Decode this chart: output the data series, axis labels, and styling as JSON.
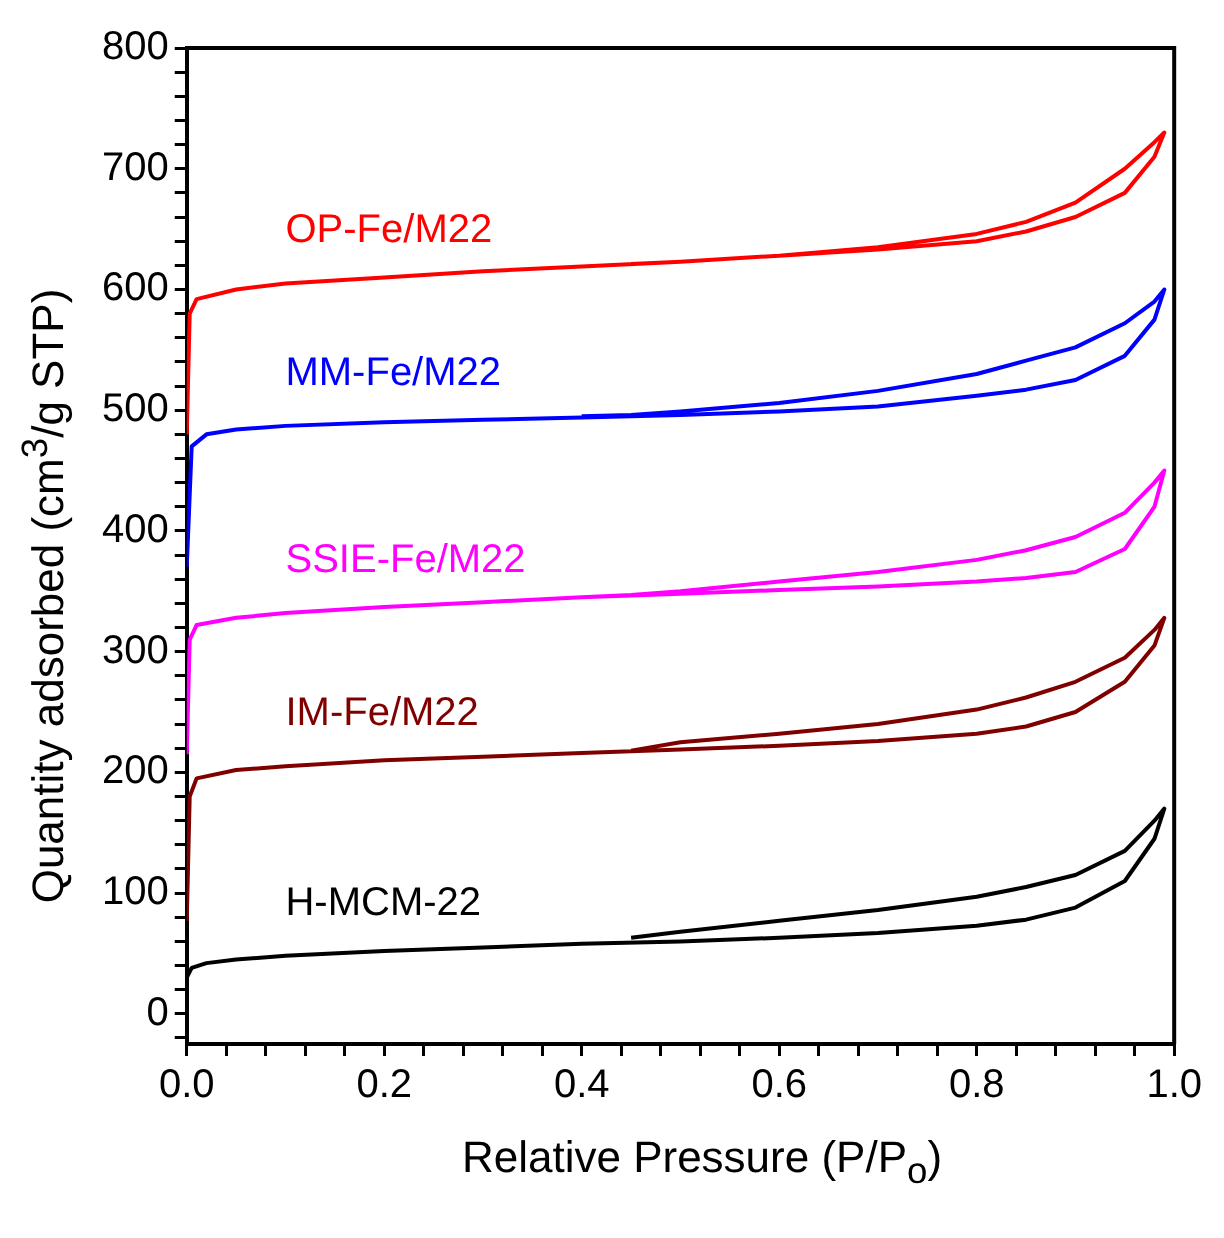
{
  "chart_data": {
    "type": "line",
    "xlabel": "Relative Pressure (P/P$_{o}$)",
    "ylabel": "Quantity adsorbed (cm$^{3}$/g STP)",
    "xlim": [
      0,
      1
    ],
    "ylim": [
      -25,
      800
    ],
    "xticks": [
      {
        "value": 0,
        "label": "0.0"
      },
      {
        "value": 0.04,
        "label": null
      },
      {
        "value": 0.08,
        "label": null
      },
      {
        "value": 0.12,
        "label": null
      },
      {
        "value": 0.16,
        "label": null
      },
      {
        "value": 0.2,
        "label": "0.2"
      },
      {
        "value": 0.24,
        "label": null
      },
      {
        "value": 0.28,
        "label": null
      },
      {
        "value": 0.32,
        "label": null
      },
      {
        "value": 0.36,
        "label": null
      },
      {
        "value": 0.4,
        "label": "0.4"
      },
      {
        "value": 0.44,
        "label": null
      },
      {
        "value": 0.48,
        "label": null
      },
      {
        "value": 0.52,
        "label": null
      },
      {
        "value": 0.56,
        "label": null
      },
      {
        "value": 0.6,
        "label": "0.6"
      },
      {
        "value": 0.64,
        "label": null
      },
      {
        "value": 0.68,
        "label": null
      },
      {
        "value": 0.72,
        "label": null
      },
      {
        "value": 0.76,
        "label": null
      },
      {
        "value": 0.8,
        "label": "0.8"
      },
      {
        "value": 0.84,
        "label": null
      },
      {
        "value": 0.88,
        "label": null
      },
      {
        "value": 0.92,
        "label": null
      },
      {
        "value": 0.96,
        "label": null
      },
      {
        "value": 1,
        "label": "1.0"
      }
    ],
    "yticks": [
      {
        "value": -20,
        "label": null
      },
      0,
      {
        "value": 20,
        "label": null
      },
      {
        "value": 40,
        "label": null
      },
      {
        "value": 60,
        "label": null
      },
      {
        "value": 80,
        "label": null
      },
      100,
      {
        "value": 120,
        "label": null
      },
      {
        "value": 140,
        "label": null
      },
      {
        "value": 160,
        "label": null
      },
      {
        "value": 180,
        "label": null
      },
      200,
      {
        "value": 220,
        "label": null
      },
      {
        "value": 240,
        "label": null
      },
      {
        "value": 260,
        "label": null
      },
      {
        "value": 280,
        "label": null
      },
      300,
      {
        "value": 320,
        "label": null
      },
      {
        "value": 340,
        "label": null
      },
      {
        "value": 360,
        "label": null
      },
      {
        "value": 380,
        "label": null
      },
      400,
      {
        "value": 420,
        "label": null
      },
      {
        "value": 440,
        "label": null
      },
      {
        "value": 460,
        "label": null
      },
      {
        "value": 480,
        "label": null
      },
      500,
      {
        "value": 520,
        "label": null
      },
      {
        "value": 540,
        "label": null
      },
      {
        "value": 560,
        "label": null
      },
      {
        "value": 580,
        "label": null
      },
      600,
      {
        "value": 620,
        "label": null
      },
      {
        "value": 640,
        "label": null
      },
      {
        "value": 660,
        "label": null
      },
      {
        "value": 680,
        "label": null
      },
      700,
      {
        "value": 720,
        "label": null
      },
      {
        "value": 740,
        "label": null
      },
      {
        "value": 760,
        "label": null
      },
      {
        "value": 780,
        "label": null
      },
      800
    ],
    "marker": "none",
    "grid": false,
    "legend": false,
    "series": [
      {
        "name": "OP-Fe/M22",
        "color": "#ff0000",
        "x": [
          0,
          0.003,
          0.01,
          0.05,
          0.1,
          0.2,
          0.3,
          0.4,
          0.5,
          0.6,
          0.7,
          0.8,
          0.85,
          0.9,
          0.95,
          0.98,
          0.99,
          0.98,
          0.95,
          0.9,
          0.85,
          0.8,
          0.7,
          0.6,
          0.5,
          0.45
        ],
        "values": [
          480,
          580,
          592,
          600,
          605,
          610,
          615,
          619,
          623,
          628,
          633,
          640,
          648,
          660,
          680,
          710,
          730,
          722,
          700,
          672,
          656,
          646,
          635,
          628,
          623,
          621
        ]
      },
      {
        "name": "MM-Fe/M22",
        "color": "#0000ff",
        "x": [
          0,
          0.005,
          0.02,
          0.05,
          0.1,
          0.2,
          0.3,
          0.4,
          0.5,
          0.6,
          0.7,
          0.8,
          0.85,
          0.9,
          0.95,
          0.98,
          0.99,
          0.98,
          0.95,
          0.9,
          0.85,
          0.8,
          0.7,
          0.6,
          0.5,
          0.45,
          0.4
        ],
        "values": [
          370,
          470,
          480,
          484,
          487,
          490,
          492,
          494,
          496,
          499,
          503,
          512,
          517,
          525,
          545,
          575,
          600,
          590,
          572,
          552,
          541,
          530,
          516,
          506,
          499,
          496,
          495
        ]
      },
      {
        "name": "SSIE-Fe/M22",
        "color": "#ff00ff",
        "x": [
          0,
          0.003,
          0.01,
          0.05,
          0.1,
          0.2,
          0.3,
          0.4,
          0.5,
          0.6,
          0.7,
          0.8,
          0.85,
          0.9,
          0.95,
          0.98,
          0.99,
          0.98,
          0.95,
          0.9,
          0.85,
          0.8,
          0.7,
          0.6,
          0.5,
          0.45,
          0.4
        ],
        "values": [
          215,
          310,
          322,
          328,
          332,
          337,
          341,
          345,
          348,
          351,
          354,
          358,
          361,
          366,
          385,
          420,
          450,
          440,
          415,
          395,
          384,
          376,
          366,
          358,
          350,
          347,
          345
        ]
      },
      {
        "name": "IM-Fe/M22",
        "color": "#800000",
        "x": [
          0,
          0.003,
          0.01,
          0.05,
          0.1,
          0.2,
          0.3,
          0.4,
          0.5,
          0.6,
          0.7,
          0.8,
          0.85,
          0.9,
          0.95,
          0.98,
          0.99,
          0.98,
          0.95,
          0.9,
          0.85,
          0.8,
          0.7,
          0.6,
          0.5,
          0.45
        ],
        "values": [
          77,
          180,
          195,
          202,
          205,
          210,
          213,
          216,
          219,
          222,
          226,
          232,
          238,
          250,
          275,
          305,
          328,
          318,
          295,
          275,
          262,
          252,
          240,
          232,
          225,
          218
        ]
      },
      {
        "name": "H-MCM-22",
        "color": "#000000",
        "x": [
          0,
          0.005,
          0.02,
          0.05,
          0.1,
          0.2,
          0.3,
          0.4,
          0.5,
          0.6,
          0.7,
          0.8,
          0.85,
          0.9,
          0.95,
          0.98,
          0.99,
          0.98,
          0.95,
          0.9,
          0.85,
          0.8,
          0.7,
          0.6,
          0.5,
          0.45
        ],
        "values": [
          30,
          38,
          42,
          45,
          48,
          52,
          55,
          58,
          60,
          63,
          67,
          73,
          78,
          88,
          110,
          145,
          170,
          160,
          135,
          115,
          105,
          97,
          86,
          77,
          68,
          63
        ]
      }
    ]
  }
}
